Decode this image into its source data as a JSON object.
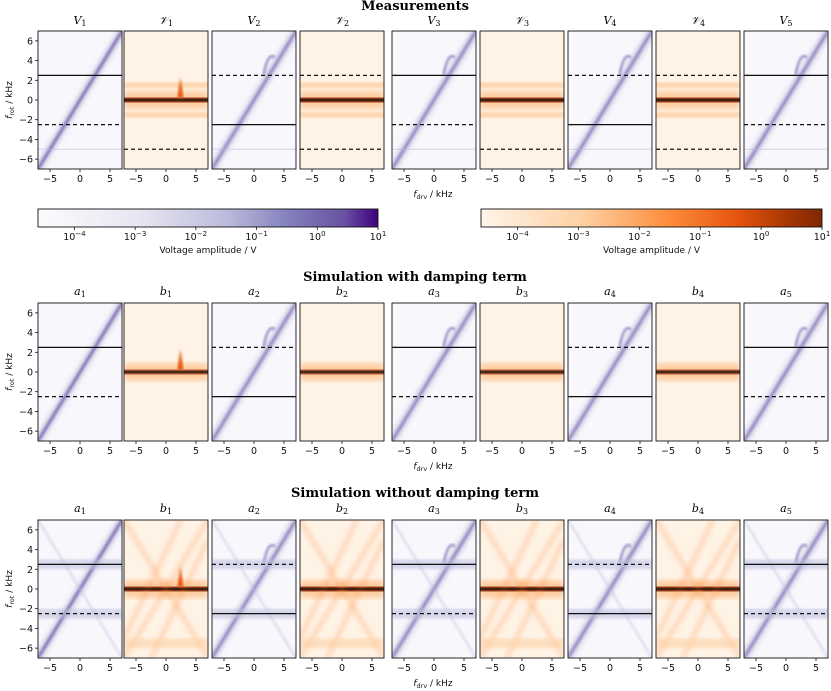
{
  "colors": {
    "purple_light": "#f7f6fc",
    "purple_dark": "#3f007d",
    "orange_light": "#fff5eb",
    "orange_dark": "#7f2704",
    "line": "#111111"
  },
  "chart_data": {
    "type": "heatmap",
    "x_ticks": [
      -5,
      0,
      5
    ],
    "y_ticks": [
      -6,
      -4,
      -2,
      0,
      2,
      4,
      6
    ],
    "xlim": [
      -7,
      7
    ],
    "ylim": [
      -7,
      7
    ],
    "xlabel_main": "f",
    "xlabel_sub": "drv",
    "xlabel_unit": " / kHz",
    "ylabel_main": "f",
    "ylabel_sub": "rot",
    "ylabel_unit": " / kHz",
    "rows": [
      {
        "title": "Measurements",
        "panels": [
          {
            "label": "V",
            "sub": "1",
            "cmap": "purple",
            "solid_y": [
              2.5
            ],
            "dashed_y": [
              -2.5
            ]
          },
          {
            "label": "𝒱",
            "sub": "1",
            "cmap": "orange",
            "solid_y": [
              0
            ],
            "dashed_y": [
              -5
            ]
          },
          {
            "label": "V",
            "sub": "2",
            "cmap": "purple",
            "solid_y": [
              -2.5
            ],
            "dashed_y": [
              2.5
            ]
          },
          {
            "label": "𝒱",
            "sub": "2",
            "cmap": "orange",
            "solid_y": [
              0
            ],
            "dashed_y": [
              2.5,
              -5
            ]
          },
          {
            "label": "V",
            "sub": "3",
            "cmap": "purple",
            "solid_y": [
              2.5
            ],
            "dashed_y": [
              -2.5
            ]
          },
          {
            "label": "𝒱",
            "sub": "3",
            "cmap": "orange",
            "solid_y": [
              0
            ],
            "dashed_y": [
              -5
            ]
          },
          {
            "label": "V",
            "sub": "4",
            "cmap": "purple",
            "solid_y": [
              -2.5
            ],
            "dashed_y": [
              2.5
            ]
          },
          {
            "label": "𝒱",
            "sub": "4",
            "cmap": "orange",
            "solid_y": [
              0
            ],
            "dashed_y": [
              2.5,
              -5
            ]
          },
          {
            "label": "V",
            "sub": "5",
            "cmap": "purple",
            "solid_y": [
              2.5
            ],
            "dashed_y": [
              -2.5
            ]
          }
        ]
      },
      {
        "title": "Simulation with damping term",
        "panels": [
          {
            "label": "a",
            "sub": "1",
            "cmap": "purple",
            "solid_y": [
              2.5
            ],
            "dashed_y": [
              -2.5
            ]
          },
          {
            "label": "b",
            "sub": "1",
            "cmap": "orange",
            "solid_y": [
              0
            ],
            "dashed_y": []
          },
          {
            "label": "a",
            "sub": "2",
            "cmap": "purple",
            "solid_y": [
              -2.5
            ],
            "dashed_y": [
              2.5
            ]
          },
          {
            "label": "b",
            "sub": "2",
            "cmap": "orange",
            "solid_y": [
              0
            ],
            "dashed_y": []
          },
          {
            "label": "a",
            "sub": "3",
            "cmap": "purple",
            "solid_y": [
              2.5
            ],
            "dashed_y": [
              -2.5
            ]
          },
          {
            "label": "b",
            "sub": "3",
            "cmap": "orange",
            "solid_y": [
              0
            ],
            "dashed_y": []
          },
          {
            "label": "a",
            "sub": "4",
            "cmap": "purple",
            "solid_y": [
              -2.5
            ],
            "dashed_y": [
              2.5
            ]
          },
          {
            "label": "b",
            "sub": "4",
            "cmap": "orange",
            "solid_y": [
              0
            ],
            "dashed_y": []
          },
          {
            "label": "a",
            "sub": "5",
            "cmap": "purple",
            "solid_y": [
              2.5
            ],
            "dashed_y": [
              -2.5
            ]
          }
        ]
      },
      {
        "title": "Simulation without damping term",
        "panels": [
          {
            "label": "a",
            "sub": "1",
            "cmap": "purple",
            "solid_y": [
              2.5
            ],
            "dashed_y": [
              -2.5
            ]
          },
          {
            "label": "b",
            "sub": "1",
            "cmap": "orange",
            "solid_y": [
              0
            ],
            "dashed_y": []
          },
          {
            "label": "a",
            "sub": "2",
            "cmap": "purple",
            "solid_y": [
              -2.5
            ],
            "dashed_y": [
              2.5
            ]
          },
          {
            "label": "b",
            "sub": "2",
            "cmap": "orange",
            "solid_y": [
              0
            ],
            "dashed_y": []
          },
          {
            "label": "a",
            "sub": "3",
            "cmap": "purple",
            "solid_y": [
              2.5
            ],
            "dashed_y": [
              -2.5
            ]
          },
          {
            "label": "b",
            "sub": "3",
            "cmap": "orange",
            "solid_y": [
              0
            ],
            "dashed_y": []
          },
          {
            "label": "a",
            "sub": "4",
            "cmap": "purple",
            "solid_y": [
              -2.5
            ],
            "dashed_y": [
              2.5
            ]
          },
          {
            "label": "b",
            "sub": "4",
            "cmap": "orange",
            "solid_y": [
              0
            ],
            "dashed_y": []
          },
          {
            "label": "a",
            "sub": "5",
            "cmap": "purple",
            "solid_y": [
              2.5
            ],
            "dashed_y": [
              -2.5
            ]
          }
        ]
      }
    ],
    "colorbars": [
      {
        "cmap": "purple",
        "label": "Voltage amplitude / V",
        "ticks": [
          "10",
          "10",
          "10",
          "10",
          "10",
          "10"
        ],
        "tick_exponents": [
          "−4",
          "−3",
          "−2",
          "−1",
          "0",
          "1"
        ],
        "range_log10": [
          -4.6,
          1
        ]
      },
      {
        "cmap": "orange",
        "label": "Voltage amplitude / V",
        "ticks": [
          "10",
          "10",
          "10",
          "10",
          "10",
          "10"
        ],
        "tick_exponents": [
          "−4",
          "−3",
          "−2",
          "−1",
          "0",
          "1"
        ],
        "range_log10": [
          -4.6,
          1
        ]
      }
    ]
  }
}
